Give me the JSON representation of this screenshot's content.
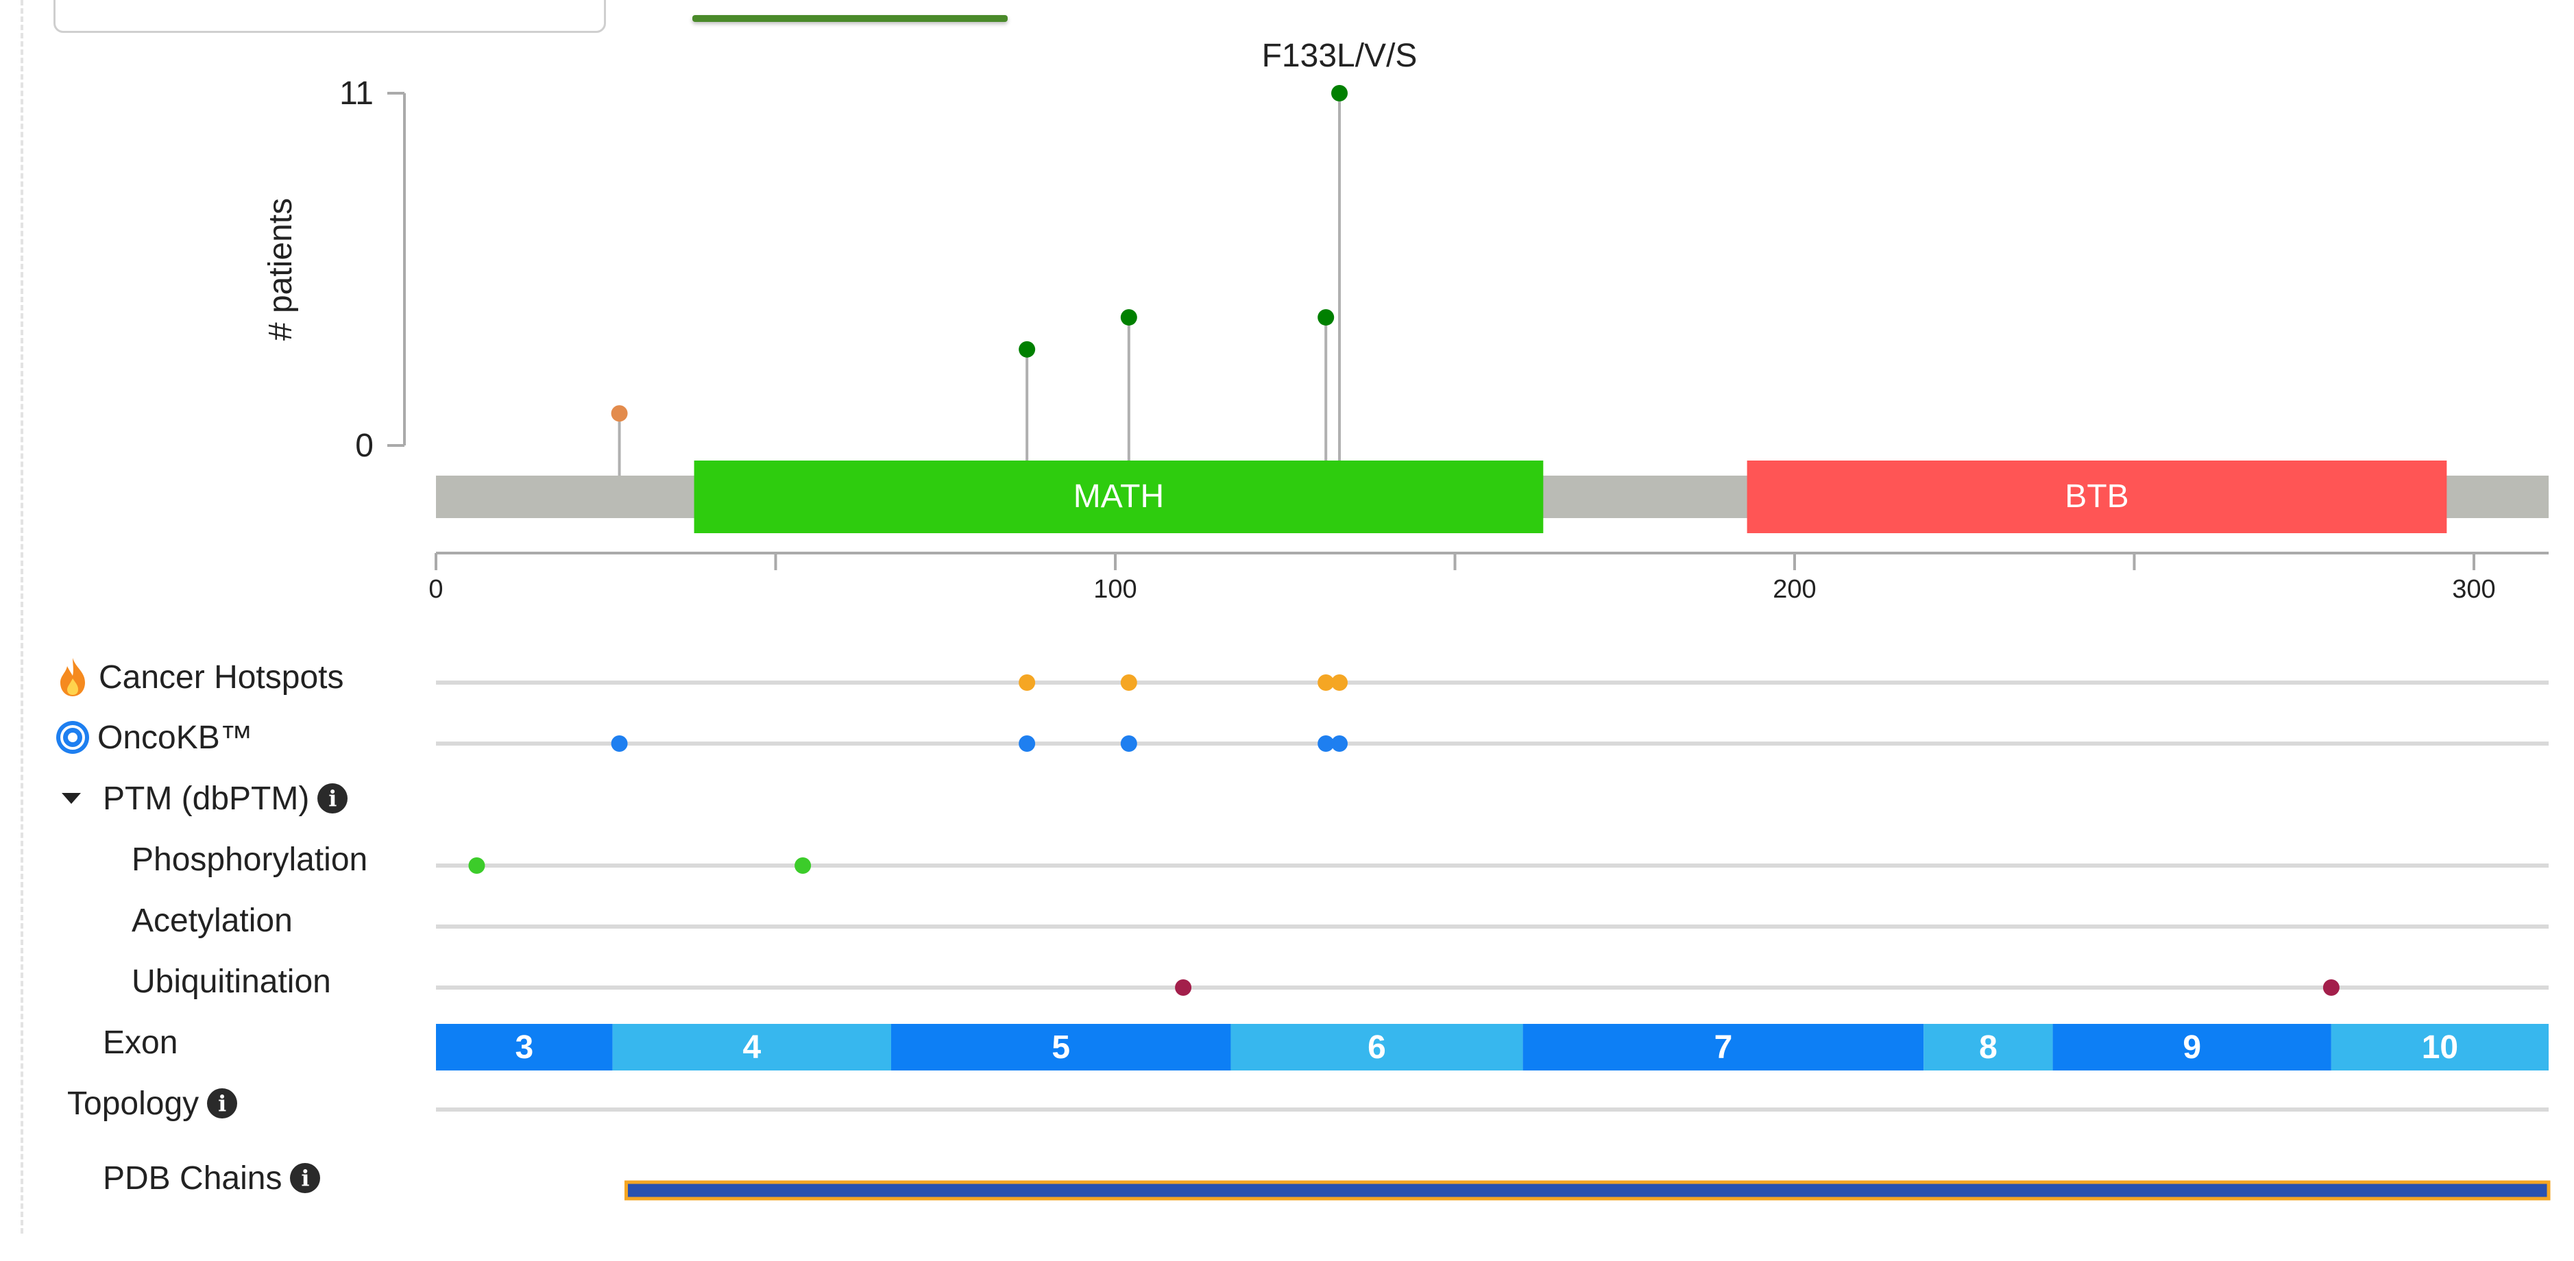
{
  "chart_data": {
    "type": "lollipop",
    "ylabel": "# patients",
    "yticks": [
      "0",
      "11"
    ],
    "ylim": [
      0,
      11
    ],
    "xlim": [
      0,
      311
    ],
    "xticks": [
      0,
      50,
      100,
      150,
      200,
      250,
      300
    ],
    "xtick_labels": [
      "0",
      "",
      "100",
      "",
      "200",
      "",
      "300"
    ],
    "top_label": "F133L/V/S",
    "lollipops": [
      {
        "position": 27,
        "count": 1,
        "color": "#e38b4c"
      },
      {
        "position": 87,
        "count": 3,
        "color": "#008000"
      },
      {
        "position": 102,
        "count": 4,
        "color": "#008000"
      },
      {
        "position": 131,
        "count": 4,
        "color": "#008000"
      },
      {
        "position": 133,
        "count": 11,
        "color": "#008000"
      }
    ],
    "domains": [
      {
        "name": "MATH",
        "start": 38,
        "end": 163,
        "color": "#2ecc0e"
      },
      {
        "name": "BTB",
        "start": 193,
        "end": 296,
        "color": "#ff5555"
      }
    ]
  },
  "tracks": {
    "hotspots": {
      "label": "Cancer Hotspots",
      "color": "#f5a623",
      "positions": [
        87,
        102,
        131,
        133
      ]
    },
    "oncokb": {
      "label": "OncoKB™",
      "color": "#1e7ff0",
      "positions": [
        27,
        87,
        102,
        131,
        133
      ]
    },
    "ptm": {
      "label": "PTM (dbPTM)"
    },
    "phosphorylation": {
      "label": "Phosphorylation",
      "color": "#3ccc2a",
      "positions": [
        6,
        54
      ]
    },
    "acetylation": {
      "label": "Acetylation",
      "positions": []
    },
    "ubiquitination": {
      "label": "Ubiquitination",
      "color": "#a31f4b",
      "positions": [
        110,
        279
      ]
    },
    "exon": {
      "label": "Exon",
      "segments": [
        {
          "name": "3",
          "start": 0,
          "end": 26
        },
        {
          "name": "4",
          "start": 26,
          "end": 67
        },
        {
          "name": "5",
          "start": 67,
          "end": 117
        },
        {
          "name": "6",
          "start": 117,
          "end": 160
        },
        {
          "name": "7",
          "start": 160,
          "end": 219
        },
        {
          "name": "8",
          "start": 219,
          "end": 238
        },
        {
          "name": "9",
          "start": 238,
          "end": 279
        },
        {
          "name": "10",
          "start": 279,
          "end": 311
        }
      ]
    },
    "topology": {
      "label": "Topology"
    },
    "pdb": {
      "label": "PDB Chains",
      "start": 28,
      "end": 311
    }
  }
}
